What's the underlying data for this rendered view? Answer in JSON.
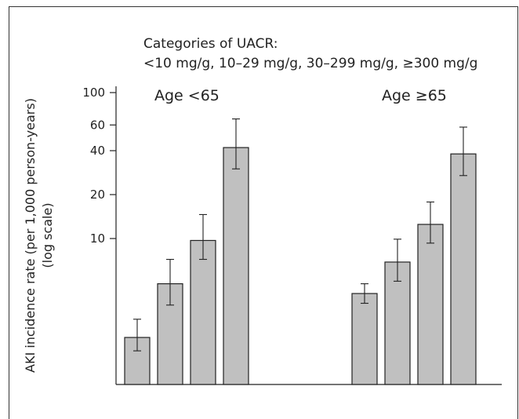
{
  "chart_data": {
    "type": "bar",
    "legend_title": "Categories of UACR:",
    "categories_text": "<10 mg/g, 10–29 mg/g, 30–299 mg/g, ≥300 mg/g",
    "categories": [
      "<10 mg/g",
      "10–29 mg/g",
      "30–299 mg/g",
      "≥300 mg/g"
    ],
    "ylabel_line1": "AKI incidence rate (per 1,000 person-years)",
    "ylabel_line2": "(log scale)",
    "yscale": "log",
    "ylim": [
      1,
      100
    ],
    "yticks": [
      10,
      20,
      40,
      60,
      100
    ],
    "groups": [
      {
        "name": "Age <65",
        "values": [
          2.1,
          4.9,
          9.7,
          42
        ],
        "err_low": [
          1.7,
          3.5,
          7.2,
          30
        ],
        "err_high": [
          2.8,
          7.2,
          14.6,
          66
        ]
      },
      {
        "name": "Age ≥65",
        "values": [
          4.2,
          6.9,
          12.5,
          38
        ],
        "err_low": [
          3.6,
          5.1,
          9.3,
          27
        ],
        "err_high": [
          4.9,
          9.9,
          17.8,
          58
        ]
      }
    ],
    "colors": {
      "bar": "#c0c0c0",
      "stroke": "#222222"
    }
  }
}
